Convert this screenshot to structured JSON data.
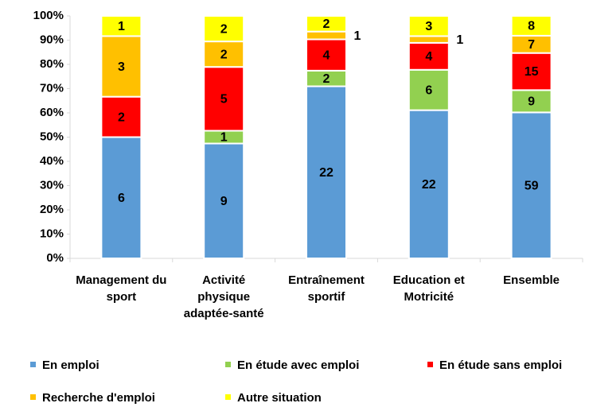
{
  "chart_data": {
    "type": "bar",
    "stacking": "percent",
    "categories": [
      "Management du sport",
      "Activité physique adaptée-santé",
      "Entraînement sportif",
      "Education et Motricité",
      "Ensemble"
    ],
    "series": [
      {
        "name": "En emploi",
        "color": "#5b9bd5",
        "values": [
          6,
          9,
          22,
          22,
          59
        ]
      },
      {
        "name": "En étude avec emploi",
        "color": "#92d050",
        "values": [
          0,
          1,
          2,
          6,
          9
        ]
      },
      {
        "name": "En étude sans emploi",
        "color": "#ff0000",
        "values": [
          2,
          5,
          4,
          4,
          15
        ]
      },
      {
        "name": "Recherche d'emploi",
        "color": "#ffc000",
        "values": [
          3,
          2,
          1,
          1,
          7
        ]
      },
      {
        "name": "Autre situation",
        "color": "#ffff00",
        "values": [
          1,
          2,
          2,
          3,
          8
        ]
      }
    ],
    "ylim": [
      0,
      100
    ],
    "yticks": [
      {
        "value": 0,
        "label": "0%"
      },
      {
        "value": 10,
        "label": "10%"
      },
      {
        "value": 20,
        "label": "20%"
      },
      {
        "value": 30,
        "label": "30%"
      },
      {
        "value": 40,
        "label": "40%"
      },
      {
        "value": 50,
        "label": "50%"
      },
      {
        "value": 60,
        "label": "60%"
      },
      {
        "value": 70,
        "label": "70%"
      },
      {
        "value": 80,
        "label": "80%"
      },
      {
        "value": 90,
        "label": "90%"
      },
      {
        "value": 100,
        "label": "100%"
      }
    ],
    "legend": "bottom"
  }
}
